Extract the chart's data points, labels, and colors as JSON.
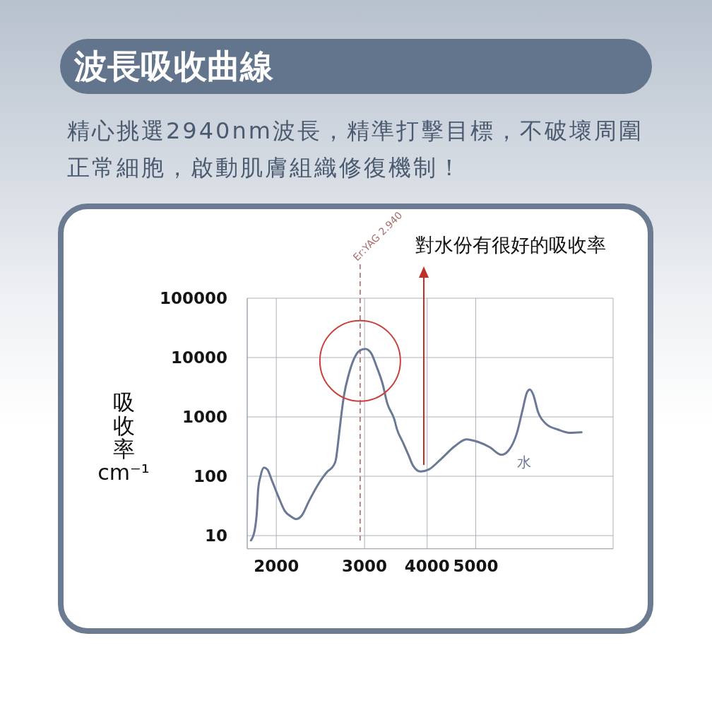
{
  "chart_data": {
    "type": "line",
    "title": "波長吸收曲線",
    "subtitle": "精心挑選2940nm波長，精準打擊目標，不破壞周圍正常細胞，啟動肌膚組織修復機制！",
    "ylabel": "吸收率 cm⁻¹",
    "annotations": [
      "對水份有很好的吸收率"
    ],
    "x": [
      1780,
      1810,
      1830,
      1840,
      1860,
      1890,
      1920,
      1960,
      2020,
      2080,
      2140,
      2190,
      2250,
      2320,
      2420,
      2530,
      2600,
      2630,
      2660,
      2690,
      2730,
      2790,
      2850,
      2930,
      3010,
      3090,
      3170,
      3260,
      3330,
      3440,
      3480,
      3580,
      3670,
      3750,
      3880,
      4030,
      4250,
      4540,
      4790,
      5050,
      5330,
      5630,
      5810,
      6040,
      6200,
      6330,
      6410,
      6510,
      6660,
      6910,
      7300,
      7700,
      8130
    ],
    "series": [
      {
        "name": "水",
        "color": "#6b7896",
        "values": [
          8.3,
          12,
          26,
          59,
          100,
          140,
          130,
          85,
          45,
          26,
          21,
          19,
          22,
          37,
          71,
          120,
          150,
          190,
          400,
          910,
          2300,
          5200,
          9000,
          13000,
          14000,
          12000,
          7100,
          3600,
          1700,
          910,
          630,
          370,
          230,
          150,
          120,
          130,
          190,
          320,
          420,
          380,
          310,
          230,
          270,
          530,
          1300,
          2600,
          2900,
          2400,
          1200,
          760,
          610,
          540,
          550
        ]
      }
    ],
    "xlim": [
      1750,
      9400
    ],
    "xticks": [
      2000,
      3000,
      4000,
      5000
    ],
    "ylim": [
      6,
      100000
    ],
    "yticks": [
      10,
      100,
      1000,
      10000,
      100000
    ],
    "log": "xy",
    "grid": true,
    "ref_lines": [
      {
        "axis": "x",
        "value": 2940,
        "label": "Er:YAG 2.940",
        "color": "#a86e6e",
        "line_style": "dashed"
      }
    ]
  }
}
